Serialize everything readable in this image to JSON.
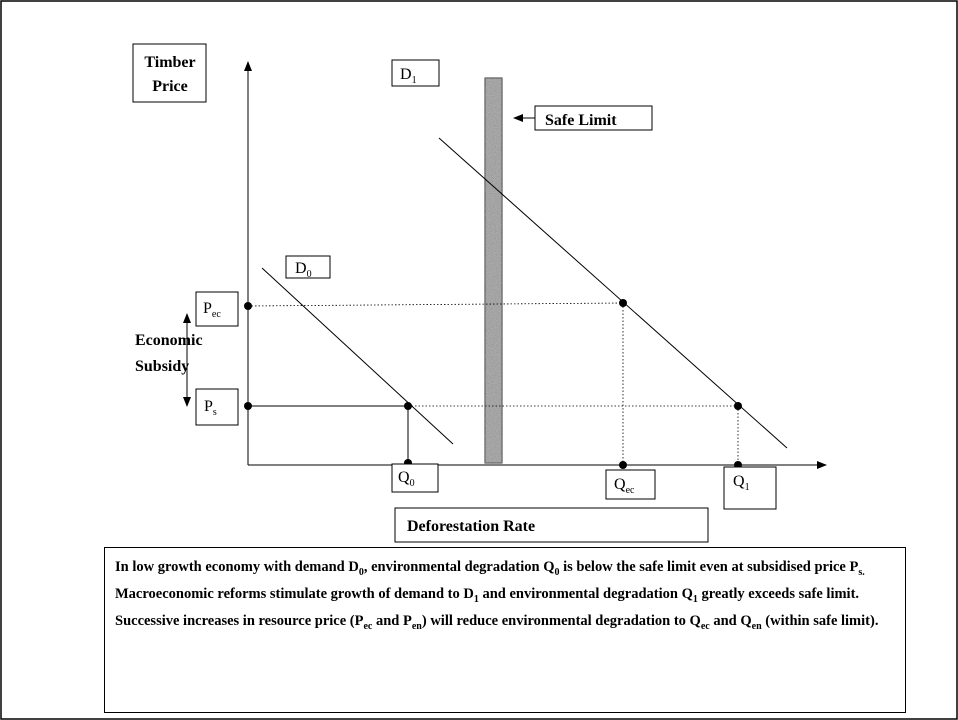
{
  "axes": {
    "y_label": [
      "Timber",
      "Price"
    ],
    "x_label": "Deforestation Rate"
  },
  "curves": [
    {
      "label": [
        "D",
        "0"
      ]
    },
    {
      "label": [
        "D",
        "1"
      ]
    }
  ],
  "safe_limit": "Safe Limit",
  "prices": [
    {
      "label": [
        "P",
        "ec"
      ]
    },
    {
      "label": [
        "P",
        "s"
      ]
    }
  ],
  "quantities": [
    [
      "Q",
      "0"
    ],
    [
      "Q",
      "ec"
    ],
    [
      "Q",
      "1"
    ]
  ],
  "subsidy": [
    "Economic",
    "Subsidy"
  ],
  "notes": [
    [
      "In low growth economy with demand D",
      "0",
      ", environmental degradation Q",
      "0",
      " is below the safe limit even at subsidised price P",
      "s."
    ],
    [
      "Macroeconomic reforms stimulate growth of demand to D",
      "1",
      " and environmental degradation Q",
      "1",
      " greatly exceeds safe limit."
    ],
    [
      "Successive increases in resource price (P",
      "ec",
      " and P",
      "en",
      ") will reduce environmental degradation to Q",
      "ec",
      " and Q",
      "en",
      " (within safe limit)."
    ]
  ]
}
